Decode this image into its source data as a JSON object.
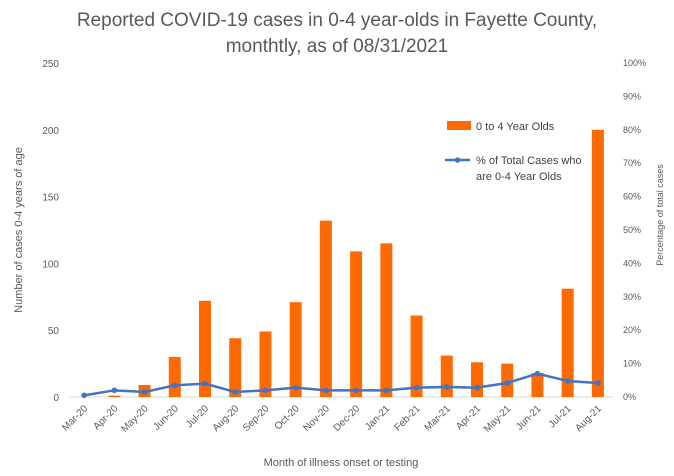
{
  "chart_data": {
    "type": "bar+line",
    "title_line1": "Reported COVID-19 cases in 0-4 year-olds in Fayette County,",
    "title_line2": "monthtly, as of 08/31/2021",
    "xlabel": "Month of illness onset or testing",
    "ylabel_left": "Number of cases 0-4 years of age",
    "ylabel_right": "Percentage of total cases",
    "categories": [
      "Mar-20",
      "Apr-20",
      "May-20",
      "Jun-20",
      "Jul-20",
      "Aug-20",
      "Sep-20",
      "Oct-20",
      "Nov-20",
      "Dec-20",
      "Jan-21",
      "Feb-21",
      "Mar-21",
      "Apr-21",
      "May-21",
      "Jun-21",
      "Jul-21",
      "Aug-21"
    ],
    "ylim_left": [
      0,
      250
    ],
    "yticks_left": [
      "0",
      "50",
      "100",
      "150",
      "200",
      "250"
    ],
    "ylim_right": [
      0,
      100
    ],
    "yticks_right": [
      "0%",
      "10%",
      "20%",
      "30%",
      "40%",
      "50%",
      "60%",
      "70%",
      "80%",
      "90%",
      "100%"
    ],
    "series": [
      {
        "name": "0 to 4 Year Olds",
        "type": "bar",
        "color": "#ff6a00",
        "values": [
          0,
          1,
          9,
          30,
          72,
          44,
          49,
          71,
          132,
          109,
          115,
          61,
          31,
          26,
          25,
          18,
          81,
          200
        ]
      },
      {
        "name": "% of Total Cases who are 0-4 Year Olds",
        "legend_line1": "% of Total Cases who",
        "legend_line2": "are 0-4 Year Olds",
        "type": "line",
        "color": "#4472c4",
        "values": [
          0.5,
          2,
          1.5,
          3.5,
          4,
          1.5,
          2,
          2.8,
          2,
          2,
          2,
          2.8,
          3,
          2.8,
          4.2,
          7,
          4.8,
          4.2
        ]
      }
    ],
    "legend_position": "top-right"
  }
}
